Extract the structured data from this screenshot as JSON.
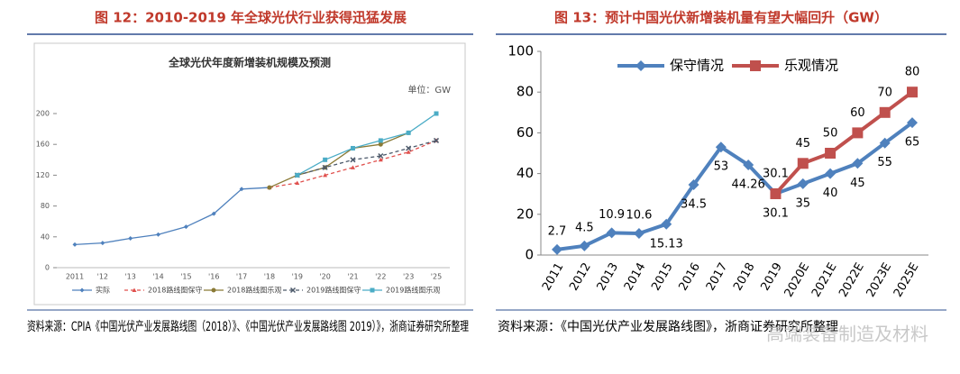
{
  "chart_data": [
    {
      "type": "line",
      "figure_title": "图 12：2010-2019 年全球光伏行业获得迅猛发展",
      "title": "全球光伏年度新增装机规模及预测",
      "unit_label": "单位：GW",
      "categories": [
        "2011",
        "'12",
        "'13",
        "'14",
        "'15",
        "'16",
        "'17",
        "'18",
        "'19",
        "'20",
        "'21",
        "'22",
        "'23",
        "'25"
      ],
      "ylim": [
        0,
        200
      ],
      "yticks": [
        0,
        40,
        80,
        120,
        160,
        200
      ],
      "grid": false,
      "legend": "bottom",
      "series": [
        {
          "name": "实际",
          "color": "#4f81bd",
          "dash": false,
          "marker": "diamond",
          "values": [
            30,
            32,
            38,
            43,
            53,
            70,
            102,
            104,
            null,
            null,
            null,
            null,
            null,
            null
          ]
        },
        {
          "name": "2018路线图保守",
          "color": "#e0504d",
          "dash": true,
          "marker": "triangle",
          "values": [
            null,
            null,
            null,
            null,
            null,
            null,
            null,
            104,
            110,
            120,
            130,
            140,
            150,
            165
          ]
        },
        {
          "name": "2018路线图乐观",
          "color": "#8a7a36",
          "dash": false,
          "marker": "circle",
          "values": [
            null,
            null,
            null,
            null,
            null,
            null,
            null,
            104,
            120,
            130,
            155,
            160,
            175,
            null
          ]
        },
        {
          "name": "2019路线图保守",
          "color": "#4d5a6b",
          "dash": true,
          "marker": "x",
          "values": [
            null,
            null,
            null,
            null,
            null,
            null,
            null,
            null,
            120,
            130,
            140,
            145,
            155,
            165
          ]
        },
        {
          "name": "2019路线图乐观",
          "color": "#4bacc6",
          "dash": false,
          "marker": "square",
          "values": [
            null,
            null,
            null,
            null,
            null,
            null,
            null,
            null,
            120,
            140,
            155,
            165,
            175,
            200
          ]
        }
      ],
      "source": "资料来源：CPIA《中国光伏产业发展路线图（2018）》、《中国光伏产业发展路线图 2019）》，浙商证券研究所整理"
    },
    {
      "type": "line",
      "figure_title": "图 13：预计中国光伏新增装机量有望大幅回升（GW）",
      "categories": [
        "2011",
        "2012",
        "2013",
        "2014",
        "2015",
        "2016",
        "2017",
        "2018",
        "2019",
        "2020E",
        "2021E",
        "2022E",
        "2023E",
        "2025E"
      ],
      "ylim": [
        0,
        100
      ],
      "yticks": [
        0,
        20,
        40,
        60,
        80,
        100
      ],
      "grid": false,
      "legend": "top",
      "series": [
        {
          "name": "保守情况",
          "color": "#4f81bd",
          "dash": false,
          "marker": "diamond",
          "values": [
            2.7,
            4.5,
            10.9,
            10.6,
            15.13,
            34.5,
            53,
            44.26,
            30.1,
            35,
            40,
            45,
            55,
            65
          ]
        },
        {
          "name": "乐观情况",
          "color": "#c0504d",
          "dash": false,
          "marker": "square",
          "values": [
            null,
            null,
            null,
            null,
            null,
            null,
            null,
            null,
            30.1,
            45,
            50,
            60,
            70,
            80
          ]
        }
      ],
      "source": "资料来源：《中国光伏产业发展路线图》，浙商证券研究所整理",
      "watermark": "高端装备制造及材料"
    }
  ]
}
